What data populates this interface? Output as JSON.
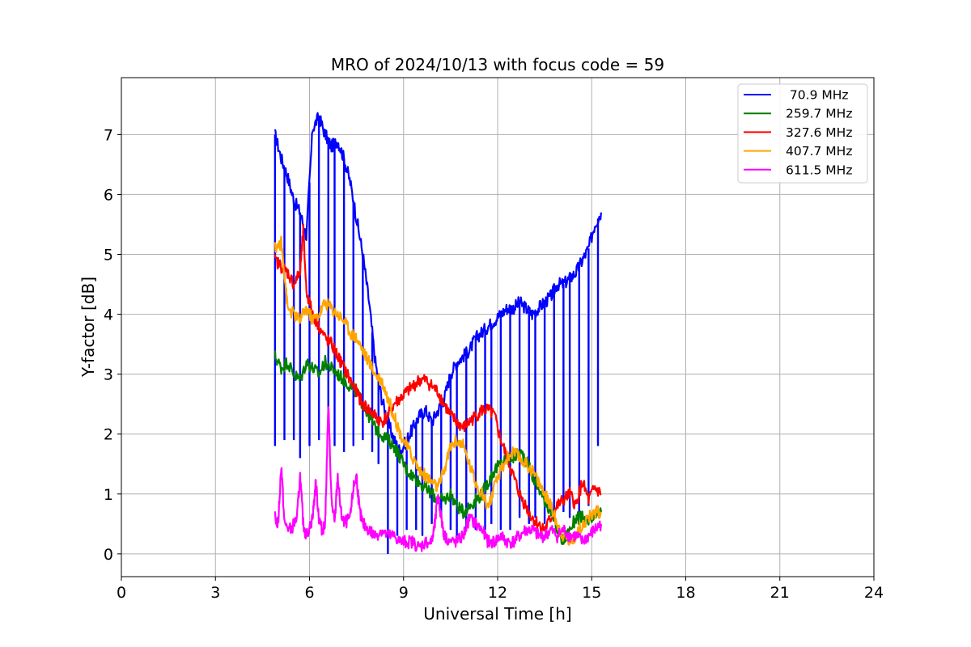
{
  "chart_data": {
    "type": "line",
    "title": "MRO of 2024/10/13 with focus code = 59",
    "xlabel": "Universal Time [h]",
    "ylabel": "Y-factor [dB]",
    "xlim": [
      0,
      24
    ],
    "ylim": [
      -0.38,
      7.95
    ],
    "xticks": [
      0,
      3,
      6,
      9,
      12,
      15,
      18,
      21,
      24
    ],
    "yticks": [
      0,
      1,
      2,
      3,
      4,
      5,
      6,
      7
    ],
    "grid": true,
    "legend_position": "top-right",
    "series": [
      {
        "name": " 70.9 MHz",
        "color": "#0000ff",
        "points": [
          [
            4.9,
            7.0
          ],
          [
            5.1,
            6.6
          ],
          [
            5.3,
            6.3
          ],
          [
            5.5,
            5.9
          ],
          [
            5.7,
            5.7
          ],
          [
            5.9,
            5.3
          ],
          [
            6.1,
            7.1
          ],
          [
            6.3,
            7.3
          ],
          [
            6.5,
            7.0
          ],
          [
            6.7,
            6.8
          ],
          [
            6.9,
            6.9
          ],
          [
            7.1,
            6.6
          ],
          [
            7.3,
            6.2
          ],
          [
            7.5,
            5.6
          ],
          [
            7.7,
            5.0
          ],
          [
            7.9,
            4.2
          ],
          [
            8.1,
            3.2
          ],
          [
            8.3,
            2.6
          ],
          [
            8.5,
            2.2
          ],
          [
            8.7,
            1.9
          ],
          [
            8.9,
            1.7
          ],
          [
            9.1,
            1.9
          ],
          [
            9.3,
            2.1
          ],
          [
            9.5,
            2.3
          ],
          [
            9.7,
            2.4
          ],
          [
            9.9,
            2.2
          ],
          [
            10.1,
            2.4
          ],
          [
            10.3,
            2.6
          ],
          [
            10.5,
            3.0
          ],
          [
            10.7,
            3.2
          ],
          [
            10.9,
            3.3
          ],
          [
            11.1,
            3.4
          ],
          [
            11.3,
            3.6
          ],
          [
            11.5,
            3.7
          ],
          [
            11.7,
            3.8
          ],
          [
            11.9,
            3.9
          ],
          [
            12.1,
            4.0
          ],
          [
            12.3,
            4.1
          ],
          [
            12.5,
            4.1
          ],
          [
            12.7,
            4.2
          ],
          [
            12.9,
            4.1
          ],
          [
            13.1,
            4.0
          ],
          [
            13.3,
            4.1
          ],
          [
            13.5,
            4.2
          ],
          [
            13.7,
            4.3
          ],
          [
            13.9,
            4.5
          ],
          [
            14.1,
            4.5
          ],
          [
            14.3,
            4.6
          ],
          [
            14.5,
            4.7
          ],
          [
            14.7,
            4.9
          ],
          [
            14.9,
            5.1
          ],
          [
            15.1,
            5.5
          ],
          [
            15.3,
            5.7
          ]
        ],
        "dip_to": [
          [
            4.9,
            1.8
          ],
          [
            5.2,
            1.9
          ],
          [
            5.5,
            1.9
          ],
          [
            5.7,
            1.6
          ],
          [
            6.0,
            1.8
          ],
          [
            6.3,
            1.9
          ],
          [
            6.6,
            2.1
          ],
          [
            6.8,
            1.8
          ],
          [
            7.1,
            1.7
          ],
          [
            7.4,
            1.8
          ],
          [
            7.7,
            1.9
          ],
          [
            8.0,
            1.7
          ],
          [
            8.2,
            1.5
          ],
          [
            8.5,
            0.0
          ],
          [
            8.8,
            0.3
          ],
          [
            9.1,
            0.4
          ],
          [
            9.4,
            0.4
          ],
          [
            9.6,
            0.3
          ],
          [
            9.9,
            0.5
          ],
          [
            10.2,
            0.6
          ],
          [
            10.5,
            0.4
          ],
          [
            10.7,
            0.3
          ],
          [
            11.0,
            0.4
          ],
          [
            11.3,
            0.4
          ],
          [
            11.6,
            0.4
          ],
          [
            11.8,
            0.5
          ],
          [
            12.1,
            0.4
          ],
          [
            12.4,
            0.4
          ],
          [
            12.7,
            0.6
          ],
          [
            13.0,
            0.5
          ],
          [
            13.2,
            0.6
          ],
          [
            13.5,
            0.5
          ],
          [
            13.8,
            0.7
          ],
          [
            14.1,
            0.7
          ],
          [
            14.3,
            0.6
          ],
          [
            14.6,
            0.7
          ],
          [
            14.9,
            0.8
          ],
          [
            15.2,
            1.8
          ]
        ]
      },
      {
        "name": "259.7 MHz",
        "color": "#008000",
        "points": [
          [
            4.9,
            3.3
          ],
          [
            5.1,
            3.1
          ],
          [
            5.3,
            3.2
          ],
          [
            5.5,
            3.0
          ],
          [
            5.7,
            2.9
          ],
          [
            5.9,
            3.2
          ],
          [
            6.1,
            3.1
          ],
          [
            6.3,
            3.0
          ],
          [
            6.5,
            3.2
          ],
          [
            6.7,
            3.1
          ],
          [
            6.9,
            3.0
          ],
          [
            7.1,
            2.9
          ],
          [
            7.3,
            2.8
          ],
          [
            7.5,
            2.7
          ],
          [
            7.7,
            2.5
          ],
          [
            7.9,
            2.3
          ],
          [
            8.1,
            2.1
          ],
          [
            8.3,
            2.0
          ],
          [
            8.5,
            1.9
          ],
          [
            8.7,
            1.8
          ],
          [
            8.9,
            1.6
          ],
          [
            9.1,
            1.4
          ],
          [
            9.3,
            1.3
          ],
          [
            9.5,
            1.2
          ],
          [
            9.7,
            1.1
          ],
          [
            9.9,
            1.0
          ],
          [
            10.1,
            0.9
          ],
          [
            10.3,
            0.9
          ],
          [
            10.5,
            1.0
          ],
          [
            10.7,
            0.8
          ],
          [
            10.9,
            0.7
          ],
          [
            11.1,
            0.8
          ],
          [
            11.3,
            0.9
          ],
          [
            11.5,
            1.0
          ],
          [
            11.7,
            1.2
          ],
          [
            11.9,
            1.4
          ],
          [
            12.1,
            1.5
          ],
          [
            12.3,
            1.6
          ],
          [
            12.5,
            1.6
          ],
          [
            12.7,
            1.7
          ],
          [
            12.9,
            1.6
          ],
          [
            13.1,
            1.3
          ],
          [
            13.3,
            1.1
          ],
          [
            13.5,
            0.9
          ],
          [
            13.7,
            0.7
          ],
          [
            13.9,
            0.4
          ],
          [
            14.1,
            0.2
          ],
          [
            14.3,
            0.4
          ],
          [
            14.5,
            0.6
          ],
          [
            14.7,
            0.6
          ],
          [
            14.9,
            0.5
          ],
          [
            15.1,
            0.6
          ],
          [
            15.3,
            0.7
          ]
        ]
      },
      {
        "name": "327.6 MHz",
        "color": "#ff0000",
        "points": [
          [
            4.9,
            4.9
          ],
          [
            5.1,
            4.8
          ],
          [
            5.3,
            4.7
          ],
          [
            5.5,
            4.5
          ],
          [
            5.7,
            4.7
          ],
          [
            5.8,
            5.4
          ],
          [
            5.9,
            4.4
          ],
          [
            6.1,
            4.0
          ],
          [
            6.3,
            3.8
          ],
          [
            6.5,
            3.6
          ],
          [
            6.7,
            3.5
          ],
          [
            6.9,
            3.3
          ],
          [
            7.1,
            3.1
          ],
          [
            7.3,
            2.9
          ],
          [
            7.5,
            2.7
          ],
          [
            7.7,
            2.5
          ],
          [
            7.9,
            2.4
          ],
          [
            8.1,
            2.3
          ],
          [
            8.3,
            2.2
          ],
          [
            8.5,
            2.3
          ],
          [
            8.7,
            2.5
          ],
          [
            8.9,
            2.6
          ],
          [
            9.1,
            2.7
          ],
          [
            9.3,
            2.8
          ],
          [
            9.5,
            2.9
          ],
          [
            9.7,
            2.9
          ],
          [
            9.9,
            2.8
          ],
          [
            10.1,
            2.7
          ],
          [
            10.3,
            2.5
          ],
          [
            10.5,
            2.3
          ],
          [
            10.7,
            2.2
          ],
          [
            10.9,
            2.1
          ],
          [
            11.1,
            2.2
          ],
          [
            11.3,
            2.3
          ],
          [
            11.5,
            2.4
          ],
          [
            11.7,
            2.4
          ],
          [
            11.9,
            2.3
          ],
          [
            12.1,
            1.9
          ],
          [
            12.3,
            1.6
          ],
          [
            12.5,
            1.3
          ],
          [
            12.7,
            1.0
          ],
          [
            12.9,
            0.8
          ],
          [
            13.1,
            0.6
          ],
          [
            13.3,
            0.5
          ],
          [
            13.5,
            0.4
          ],
          [
            13.7,
            0.6
          ],
          [
            13.9,
            0.8
          ],
          [
            14.1,
            0.9
          ],
          [
            14.3,
            1.0
          ],
          [
            14.5,
            0.8
          ],
          [
            14.7,
            1.2
          ],
          [
            14.9,
            0.9
          ],
          [
            15.1,
            1.1
          ],
          [
            15.3,
            1.0
          ]
        ]
      },
      {
        "name": "407.7 MHz",
        "color": "#ffa500",
        "points": [
          [
            4.9,
            5.1
          ],
          [
            5.1,
            5.2
          ],
          [
            5.2,
            4.7
          ],
          [
            5.3,
            4.1
          ],
          [
            5.5,
            4.0
          ],
          [
            5.7,
            3.9
          ],
          [
            5.9,
            4.1
          ],
          [
            6.1,
            3.9
          ],
          [
            6.3,
            4.0
          ],
          [
            6.5,
            4.2
          ],
          [
            6.7,
            4.1
          ],
          [
            6.9,
            4.0
          ],
          [
            7.1,
            3.9
          ],
          [
            7.3,
            3.7
          ],
          [
            7.5,
            3.6
          ],
          [
            7.7,
            3.4
          ],
          [
            7.9,
            3.2
          ],
          [
            8.1,
            3.0
          ],
          [
            8.3,
            2.9
          ],
          [
            8.5,
            2.6
          ],
          [
            8.7,
            2.3
          ],
          [
            8.9,
            2.0
          ],
          [
            9.1,
            1.8
          ],
          [
            9.3,
            1.6
          ],
          [
            9.5,
            1.4
          ],
          [
            9.7,
            1.3
          ],
          [
            9.9,
            1.2
          ],
          [
            10.1,
            1.1
          ],
          [
            10.3,
            1.4
          ],
          [
            10.5,
            1.8
          ],
          [
            10.7,
            1.9
          ],
          [
            10.9,
            1.8
          ],
          [
            11.1,
            1.5
          ],
          [
            11.3,
            1.2
          ],
          [
            11.5,
            1.0
          ],
          [
            11.7,
            0.8
          ],
          [
            11.9,
            1.1
          ],
          [
            12.1,
            1.4
          ],
          [
            12.3,
            1.6
          ],
          [
            12.5,
            1.7
          ],
          [
            12.7,
            1.6
          ],
          [
            12.9,
            1.5
          ],
          [
            13.1,
            1.4
          ],
          [
            13.3,
            1.2
          ],
          [
            13.5,
            1.0
          ],
          [
            13.7,
            0.8
          ],
          [
            13.9,
            0.5
          ],
          [
            14.1,
            0.3
          ],
          [
            14.3,
            0.2
          ],
          [
            14.5,
            0.3
          ],
          [
            14.7,
            0.5
          ],
          [
            14.9,
            0.6
          ],
          [
            15.1,
            0.7
          ],
          [
            15.3,
            0.7
          ]
        ]
      },
      {
        "name": "611.5 MHz",
        "color": "#ff00ff",
        "points": [
          [
            4.9,
            0.6
          ],
          [
            5.0,
            0.5
          ],
          [
            5.1,
            1.5
          ],
          [
            5.2,
            0.5
          ],
          [
            5.4,
            0.4
          ],
          [
            5.6,
            0.6
          ],
          [
            5.7,
            1.3
          ],
          [
            5.8,
            0.5
          ],
          [
            5.9,
            0.3
          ],
          [
            6.1,
            0.6
          ],
          [
            6.2,
            1.2
          ],
          [
            6.3,
            0.6
          ],
          [
            6.4,
            0.4
          ],
          [
            6.5,
            0.5
          ],
          [
            6.6,
            2.5
          ],
          [
            6.7,
            0.9
          ],
          [
            6.8,
            0.5
          ],
          [
            6.9,
            1.3
          ],
          [
            7.0,
            0.7
          ],
          [
            7.1,
            0.5
          ],
          [
            7.3,
            0.6
          ],
          [
            7.4,
            1.1
          ],
          [
            7.5,
            1.3
          ],
          [
            7.6,
            0.7
          ],
          [
            7.7,
            0.5
          ],
          [
            7.9,
            0.4
          ],
          [
            8.1,
            0.3
          ],
          [
            8.3,
            0.4
          ],
          [
            8.5,
            0.3
          ],
          [
            8.7,
            0.3
          ],
          [
            8.9,
            0.2
          ],
          [
            9.1,
            0.2
          ],
          [
            9.3,
            0.2
          ],
          [
            9.5,
            0.1
          ],
          [
            9.7,
            0.2
          ],
          [
            9.9,
            0.2
          ],
          [
            10.0,
            0.5
          ],
          [
            10.1,
            1.0
          ],
          [
            10.2,
            0.6
          ],
          [
            10.3,
            0.3
          ],
          [
            10.5,
            0.2
          ],
          [
            10.7,
            0.2
          ],
          [
            10.9,
            0.3
          ],
          [
            11.1,
            0.6
          ],
          [
            11.3,
            0.5
          ],
          [
            11.5,
            0.4
          ],
          [
            11.7,
            0.2
          ],
          [
            11.9,
            0.2
          ],
          [
            12.1,
            0.3
          ],
          [
            12.3,
            0.2
          ],
          [
            12.5,
            0.2
          ],
          [
            12.7,
            0.3
          ],
          [
            12.9,
            0.4
          ],
          [
            13.1,
            0.4
          ],
          [
            13.3,
            0.3
          ],
          [
            13.5,
            0.3
          ],
          [
            13.7,
            0.4
          ],
          [
            13.9,
            0.3
          ],
          [
            14.1,
            0.4
          ],
          [
            14.3,
            0.3
          ],
          [
            14.5,
            0.3
          ],
          [
            14.7,
            0.2
          ],
          [
            14.9,
            0.3
          ],
          [
            15.1,
            0.4
          ],
          [
            15.3,
            0.5
          ]
        ]
      }
    ]
  }
}
